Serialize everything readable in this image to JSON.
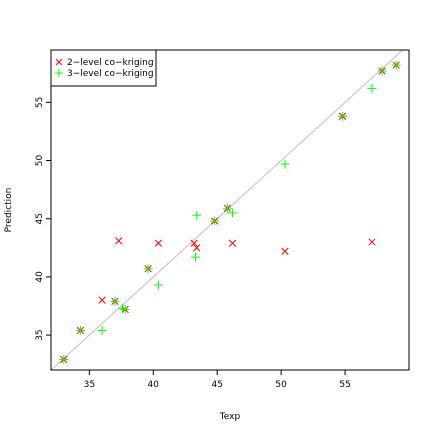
{
  "chart_data": {
    "type": "scatter",
    "title": "",
    "xlabel": "Texp",
    "ylabel": "Prediction",
    "xlim": [
      32,
      60
    ],
    "ylim": [
      32,
      59.5
    ],
    "xticks": [
      35,
      40,
      45,
      50,
      55
    ],
    "yticks": [
      35,
      40,
      45,
      50,
      55
    ],
    "grid": false,
    "legend_position": "top-left",
    "reference_line": "y = x",
    "reference_line_color": "#bebebe",
    "series": [
      {
        "name": "2−level co−kriging",
        "marker": "x",
        "color": "#ff0000",
        "points": [
          [
            33.0,
            32.9
          ],
          [
            34.3,
            35.4
          ],
          [
            36.0,
            38.0
          ],
          [
            37.0,
            37.9
          ],
          [
            37.3,
            43.1
          ],
          [
            37.8,
            37.2
          ],
          [
            39.6,
            40.7
          ],
          [
            40.4,
            42.9
          ],
          [
            43.2,
            42.9
          ],
          [
            43.4,
            42.5
          ],
          [
            44.8,
            44.8
          ],
          [
            45.8,
            45.9
          ],
          [
            46.2,
            42.9
          ],
          [
            50.3,
            42.2
          ],
          [
            54.8,
            53.8
          ],
          [
            57.1,
            43.0
          ],
          [
            57.9,
            57.7
          ],
          [
            59.0,
            58.2
          ]
        ]
      },
      {
        "name": "3−level co−kriging",
        "marker": "+",
        "color": "#00ff00",
        "points": [
          [
            33.0,
            32.9
          ],
          [
            34.3,
            35.4
          ],
          [
            36.0,
            35.4
          ],
          [
            37.0,
            37.9
          ],
          [
            37.6,
            37.3
          ],
          [
            37.8,
            37.2
          ],
          [
            39.6,
            40.7
          ],
          [
            40.4,
            39.3
          ],
          [
            43.3,
            41.7
          ],
          [
            43.4,
            45.3
          ],
          [
            44.8,
            44.8
          ],
          [
            45.8,
            45.9
          ],
          [
            46.2,
            45.5
          ],
          [
            50.3,
            49.7
          ],
          [
            54.8,
            53.8
          ],
          [
            57.1,
            56.2
          ],
          [
            57.9,
            57.7
          ],
          [
            59.0,
            58.2
          ]
        ]
      }
    ]
  }
}
